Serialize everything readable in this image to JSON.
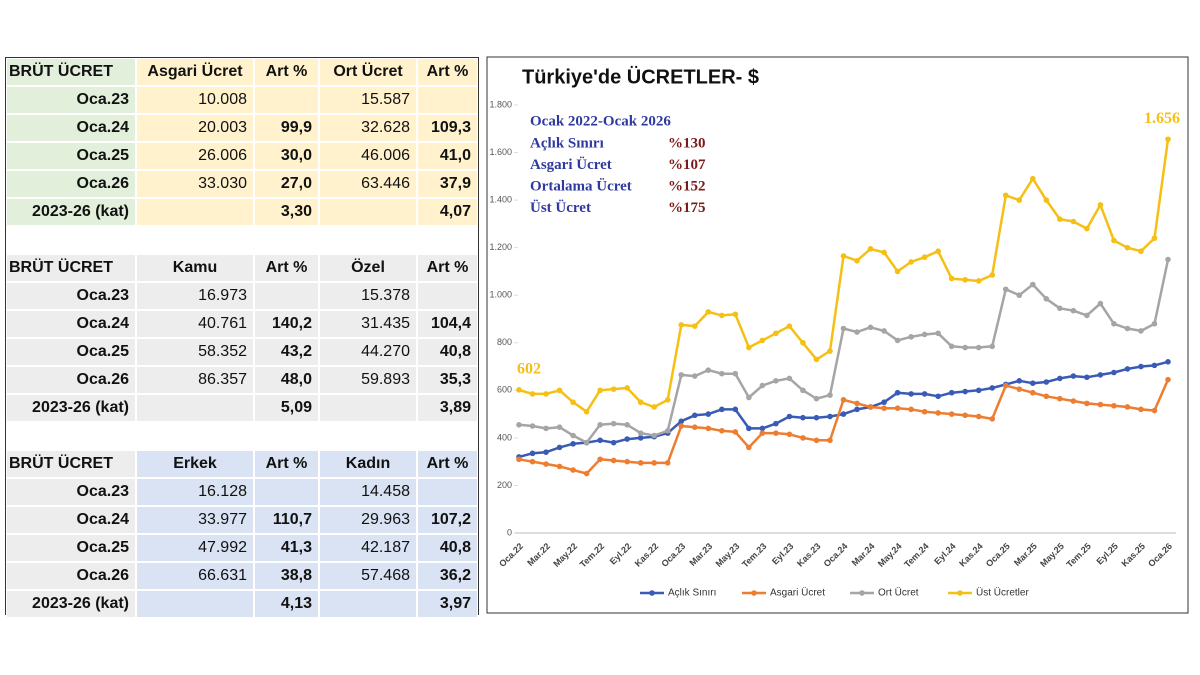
{
  "tables": [
    {
      "header": [
        "BRÜT ÜCRET",
        "Asgari Ücret",
        "Art %",
        "Ort Ücret",
        "Art %"
      ],
      "rows": [
        [
          "Oca.23",
          "10.008",
          null,
          "15.587",
          null
        ],
        [
          "Oca.24",
          "20.003",
          "99,9",
          "32.628",
          "109,3"
        ],
        [
          "Oca.25",
          "26.006",
          "30,0",
          "46.006",
          "41,0"
        ],
        [
          "Oca.26",
          "33.030",
          "27,0",
          "63.446",
          "37,9"
        ],
        [
          "2023-26 (kat)",
          null,
          "3,30",
          null,
          "4,07"
        ]
      ]
    },
    {
      "header": [
        "BRÜT ÜCRET",
        "Kamu",
        "Art %",
        "Özel",
        "Art %"
      ],
      "rows": [
        [
          "Oca.23",
          "16.973",
          null,
          "15.378",
          null
        ],
        [
          "Oca.24",
          "40.761",
          "140,2",
          "31.435",
          "104,4"
        ],
        [
          "Oca.25",
          "58.352",
          "43,2",
          "44.270",
          "40,8"
        ],
        [
          "Oca.26",
          "86.357",
          "48,0",
          "59.893",
          "35,3"
        ],
        [
          "2023-26 (kat)",
          null,
          "5,09",
          null,
          "3,89"
        ]
      ]
    },
    {
      "header": [
        "BRÜT ÜCRET",
        "Erkek",
        "Art %",
        "Kadın",
        "Art %"
      ],
      "rows": [
        [
          "Oca.23",
          "16.128",
          null,
          "14.458",
          null
        ],
        [
          "Oca.24",
          "33.977",
          "110,7",
          "29.963",
          "107,2"
        ],
        [
          "Oca.25",
          "47.992",
          "41,3",
          "42.187",
          "40,8"
        ],
        [
          "Oca.26",
          "66.631",
          "38,8",
          "57.468",
          "36,2"
        ],
        [
          "2023-26 (kat)",
          null,
          "4,13",
          null,
          "3,97"
        ]
      ]
    }
  ],
  "chart_data": {
    "type": "line",
    "title": "Türkiye'de ÜCRETLER- $",
    "annotation": {
      "title": "Ocak 2022-Ocak 2026",
      "rows": [
        [
          "Açlık Sınırı",
          "%130"
        ],
        [
          "Asgari Ücret",
          "%107"
        ],
        [
          "Ortalama Ücret",
          "%152"
        ],
        [
          "Üst Ücret",
          "%175"
        ]
      ]
    },
    "categories": [
      "Oca.22",
      null,
      "Mar.22",
      null,
      "May.22",
      null,
      "Tem.22",
      null,
      "Eyl.22",
      null,
      "Kas.22",
      null,
      "Oca.23",
      null,
      "Mar.23",
      null,
      "May.23",
      null,
      "Tem.23",
      null,
      "Eyl.23",
      null,
      "Kas.23",
      null,
      "Oca.24",
      null,
      "Mar.24",
      null,
      "May.24",
      null,
      "Tem.24",
      null,
      "Eyl.24",
      null,
      "Kas.24",
      null,
      "Oca.25",
      null,
      "Mar.25",
      null,
      "May.25",
      null,
      "Tem.25",
      null,
      "Eyl.25",
      null,
      "Kas.25",
      null,
      "Oca.26"
    ],
    "series": [
      {
        "name": "Açlık Sınırı",
        "color": "#3a5bb5",
        "values": [
          320,
          335,
          340,
          360,
          375,
          380,
          390,
          380,
          395,
          400,
          405,
          420,
          470,
          495,
          500,
          520,
          520,
          440,
          440,
          460,
          490,
          485,
          485,
          490,
          500,
          520,
          530,
          550,
          590,
          585,
          585,
          575,
          590,
          595,
          600,
          610,
          625,
          640,
          630,
          635,
          650,
          660,
          655,
          665,
          675,
          690,
          700,
          705,
          720
        ]
      },
      {
        "name": "Asgari Ücret",
        "color": "#ed7d31",
        "values": [
          310,
          300,
          290,
          280,
          265,
          250,
          310,
          305,
          300,
          295,
          295,
          295,
          450,
          445,
          440,
          430,
          425,
          360,
          420,
          420,
          415,
          400,
          390,
          390,
          560,
          545,
          530,
          525,
          525,
          520,
          510,
          505,
          500,
          495,
          490,
          480,
          620,
          605,
          590,
          575,
          565,
          555,
          545,
          540,
          535,
          530,
          520,
          515,
          645
        ]
      },
      {
        "name": "Ort Ücret",
        "color": "#a5a5a5",
        "values": [
          455,
          450,
          440,
          445,
          410,
          380,
          455,
          460,
          455,
          420,
          410,
          430,
          665,
          660,
          685,
          670,
          670,
          570,
          620,
          640,
          650,
          600,
          565,
          580,
          860,
          845,
          865,
          850,
          810,
          825,
          835,
          840,
          785,
          780,
          780,
          785,
          1025,
          1000,
          1045,
          985,
          945,
          935,
          915,
          965,
          880,
          860,
          850,
          880,
          1150
        ]
      },
      {
        "name": "Üst Ücretler",
        "color": "#f5bf14",
        "values": [
          602,
          585,
          585,
          600,
          550,
          510,
          600,
          605,
          610,
          550,
          530,
          560,
          875,
          870,
          930,
          915,
          920,
          780,
          810,
          840,
          870,
          800,
          730,
          765,
          1165,
          1145,
          1195,
          1180,
          1100,
          1140,
          1160,
          1185,
          1070,
          1065,
          1060,
          1085,
          1420,
          1400,
          1490,
          1400,
          1320,
          1310,
          1280,
          1380,
          1230,
          1200,
          1185,
          1240,
          1656
        ],
        "value_labels": [
          "602",
          null,
          null,
          null,
          null,
          null,
          null,
          null,
          null,
          null,
          null,
          null,
          null,
          null,
          null,
          null,
          null,
          null,
          null,
          null,
          null,
          null,
          null,
          null,
          null,
          null,
          null,
          null,
          null,
          null,
          null,
          null,
          null,
          null,
          null,
          null,
          null,
          null,
          null,
          null,
          null,
          null,
          null,
          null,
          null,
          null,
          null,
          null,
          "1.656"
        ]
      }
    ],
    "ylim": [
      0,
      1800
    ],
    "yticks": [
      0,
      200,
      400,
      600,
      800,
      {
        "value": 1000,
        "label": "1.000"
      },
      {
        "value": 1200,
        "label": "1.200"
      },
      {
        "value": 1400,
        "label": "1.400"
      },
      {
        "value": 1600,
        "label": "1.600"
      },
      {
        "value": 1800,
        "label": "1.800"
      }
    ],
    "legend": "bottom"
  }
}
